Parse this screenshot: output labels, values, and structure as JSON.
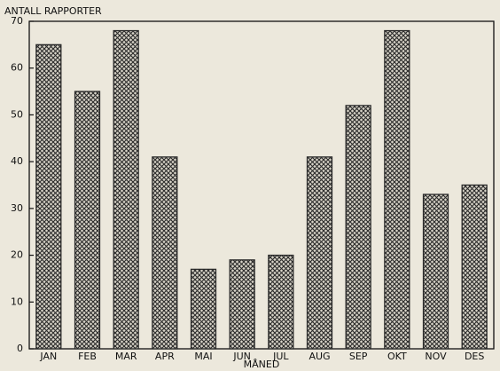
{
  "chart_data": {
    "type": "bar",
    "y_axis_label": "ANTALL RAPPORTER",
    "x_axis_label": "MÅNED",
    "categories": [
      "JAN",
      "FEB",
      "MAR",
      "APR",
      "MAI",
      "JUN",
      "JUL",
      "AUG",
      "SEP",
      "OKT",
      "NOV",
      "DES"
    ],
    "values": [
      65,
      55,
      68,
      41,
      17,
      19,
      20,
      41,
      52,
      68,
      33,
      35
    ],
    "color": "#2a2a2a",
    "ylim": [
      0,
      70
    ],
    "yticks": [
      0,
      10,
      20,
      30,
      40,
      50,
      60,
      70
    ],
    "grid": false
  }
}
